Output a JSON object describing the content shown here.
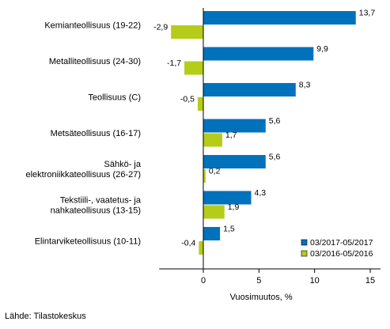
{
  "chart_data": {
    "type": "bar",
    "orientation": "horizontal",
    "categories": [
      "Kemianteollisuus (19-22)",
      "Metalliteollisuus (24-30)",
      "Teollisuus (C)",
      "Metsäteollisuus (16-17)",
      "Sähkö- ja|elektroniikkateollisuus (26-27)",
      "Tekstiili-, vaatetus- ja|nahkateollisuus (13-15)",
      "Elintarviketeollisuus (10-11)"
    ],
    "series": [
      {
        "name": "03/2017-05/2017",
        "values": [
          13.7,
          9.9,
          8.3,
          5.6,
          5.6,
          4.3,
          1.5
        ],
        "color": "#0072bc"
      },
      {
        "name": "03/2016-05/2016",
        "values": [
          -2.9,
          -1.7,
          -0.5,
          1.7,
          0.2,
          1.9,
          -0.4
        ],
        "color": "#b5cc18"
      }
    ],
    "data_labels": [
      [
        "13,7",
        "9,9",
        "8,3",
        "5,6",
        "5,6",
        "4,3",
        "1,5"
      ],
      [
        "-2,9",
        "-1,7",
        "-0,5",
        "1,7",
        "0,2",
        "1,9",
        "-0,4"
      ]
    ],
    "xlabel": "Vuosimuutos, %",
    "xlim": [
      -4,
      16
    ],
    "xticks": [
      0,
      5,
      10,
      15
    ],
    "xtick_labels": [
      "0",
      "5",
      "10",
      "15"
    ],
    "grid": false,
    "legend_position": "bottom-right"
  },
  "source_text": "Lähde: Tilastokeskus"
}
